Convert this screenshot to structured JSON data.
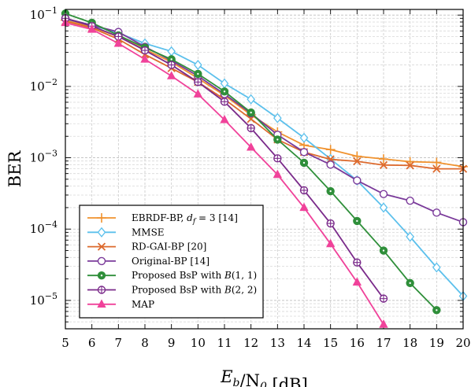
{
  "chart_data": {
    "type": "line",
    "title": "",
    "xlabel": "E_b/N_0 [dB]",
    "ylabel": "BER",
    "xlim": [
      5,
      20
    ],
    "ylim": [
      4e-06,
      0.12
    ],
    "yscale": "log",
    "grid": true,
    "legend_position": "lower-left",
    "x_ticks": [
      "5",
      "6",
      "7",
      "8",
      "9",
      "10",
      "11",
      "12",
      "13",
      "14",
      "15",
      "16",
      "17",
      "18",
      "19",
      "20"
    ],
    "y_ticks": [
      {
        "value": 0.1,
        "base": "10",
        "exp": "−1"
      },
      {
        "value": 0.01,
        "base": "10",
        "exp": "−2"
      },
      {
        "value": 0.001,
        "base": "10",
        "exp": "−3"
      },
      {
        "value": 0.0001,
        "base": "10",
        "exp": "−4"
      },
      {
        "value": 1e-05,
        "base": "10",
        "exp": "−5"
      }
    ],
    "series": [
      {
        "name": "EBRDF-BP, d_f = 3 [14]",
        "color": "#f0922e",
        "marker": "plus",
        "x": [
          5,
          6,
          7,
          8,
          9,
          10,
          11,
          12,
          13,
          14,
          15,
          16,
          17,
          18,
          19,
          20
        ],
        "y": [
          0.085,
          0.068,
          0.05,
          0.033,
          0.022,
          0.013,
          0.0075,
          0.004,
          0.0023,
          0.0015,
          0.0013,
          0.00105,
          0.00096,
          0.00088,
          0.00086,
          0.00075
        ]
      },
      {
        "name": "MMSE",
        "color": "#5cc0ec",
        "marker": "diamond",
        "x": [
          5,
          6,
          7,
          8,
          9,
          10,
          11,
          12,
          13,
          14,
          15,
          16,
          17,
          18,
          19,
          20
        ],
        "y": [
          0.088,
          0.072,
          0.056,
          0.04,
          0.031,
          0.02,
          0.011,
          0.0066,
          0.0036,
          0.0019,
          0.00096,
          0.00048,
          0.0002,
          7.8e-05,
          2.9e-05,
          1.15e-05
        ]
      },
      {
        "name": "RD-GAI-BP [20]",
        "color": "#dd6a2e",
        "marker": "x",
        "x": [
          5,
          6,
          7,
          8,
          9,
          10,
          11,
          12,
          13,
          14,
          15,
          16,
          17,
          18,
          19,
          20
        ],
        "y": [
          0.082,
          0.066,
          0.046,
          0.028,
          0.018,
          0.0115,
          0.0066,
          0.0035,
          0.0018,
          0.0012,
          0.00095,
          0.00089,
          0.00079,
          0.00078,
          0.0007,
          0.0007
        ]
      },
      {
        "name": "Original-BP [14]",
        "color": "#7a3a9a",
        "marker": "circle",
        "x": [
          5,
          6,
          7,
          8,
          9,
          10,
          11,
          12,
          13,
          14,
          15,
          16,
          17,
          18,
          19,
          20
        ],
        "y": [
          0.09,
          0.072,
          0.058,
          0.036,
          0.023,
          0.014,
          0.0078,
          0.0042,
          0.0021,
          0.0012,
          0.0008,
          0.00048,
          0.00031,
          0.00025,
          0.00017,
          0.000125
        ]
      },
      {
        "name": "Proposed BsP with B(1,1)",
        "color": "#2f8f3a",
        "marker": "circle-dot",
        "x": [
          5,
          6,
          7,
          8,
          9,
          10,
          11,
          12,
          13,
          14,
          15,
          16,
          17,
          18,
          19
        ],
        "y": [
          0.105,
          0.078,
          0.052,
          0.035,
          0.024,
          0.015,
          0.0085,
          0.0043,
          0.0018,
          0.00085,
          0.00034,
          0.00013,
          5e-05,
          1.75e-05,
          7.3e-06
        ]
      },
      {
        "name": "Proposed BsP with B(2,2)",
        "color": "#7a2a8a",
        "marker": "circle-plus",
        "x": [
          5,
          6,
          7,
          8,
          9,
          10,
          11,
          12,
          13,
          14,
          15,
          16,
          17
        ],
        "y": [
          0.09,
          0.07,
          0.05,
          0.032,
          0.02,
          0.0115,
          0.0061,
          0.0026,
          0.00098,
          0.00035,
          0.00012,
          3.4e-05,
          1.06e-05
        ]
      },
      {
        "name": "MAP",
        "color": "#f0429a",
        "marker": "triangle",
        "x": [
          5,
          6,
          7,
          8,
          9,
          10,
          11,
          12,
          13,
          14,
          15,
          16,
          17
        ],
        "y": [
          0.078,
          0.063,
          0.04,
          0.024,
          0.014,
          0.0078,
          0.0034,
          0.0014,
          0.00058,
          0.0002,
          6.2e-05,
          1.8e-05,
          4.6e-06
        ]
      }
    ],
    "legend": [
      {
        "label": "EBRDF-BP, ",
        "math": "d",
        "sub": "f",
        "tail": " = 3 [14]"
      },
      {
        "label": "MMSE"
      },
      {
        "label": "RD-GAI-BP [20]"
      },
      {
        "label": "Original-BP [14]"
      },
      {
        "label": "Proposed BsP with ",
        "script": "B",
        "tail": "(1, 1)"
      },
      {
        "label": "Proposed BsP with ",
        "script": "B",
        "tail": "(2, 2)"
      },
      {
        "label": "MAP"
      }
    ]
  }
}
